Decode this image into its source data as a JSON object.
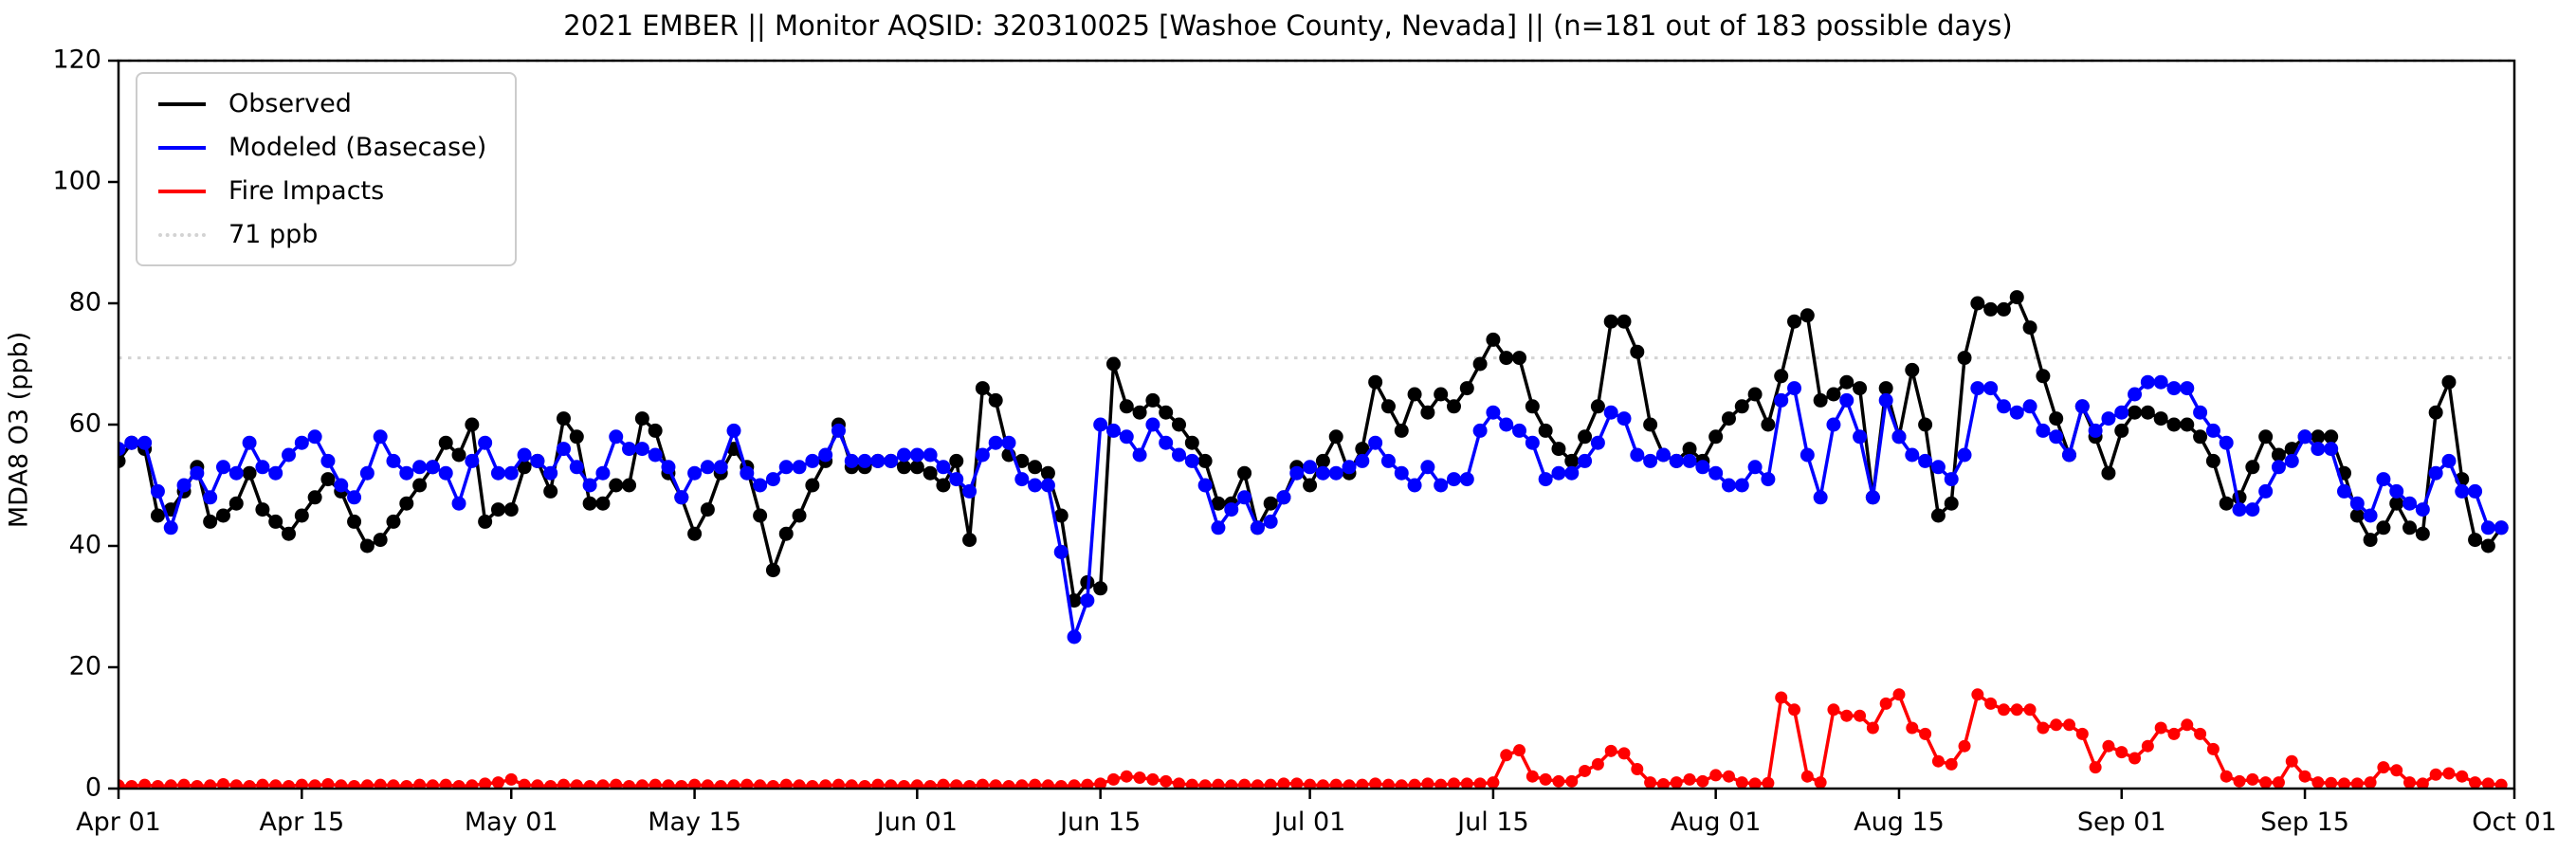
{
  "title": "2021 EMBER || Monitor AQSID: 320310025 [Washoe County, Nevada] || (n=181 out of 183 possible days)",
  "colors": {
    "observed": "#000000",
    "modeled": "#0000ff",
    "fire": "#ff0000",
    "threshold": "#d3d3d3",
    "axis": "#000000",
    "background": "#ffffff"
  },
  "chart_data": {
    "type": "line",
    "title": "2021 EMBER || Monitor AQSID: 320310025 [Washoe County, Nevada] || (n=181 out of 183 possible days)",
    "xlabel": "",
    "ylabel": "MDA8 O3 (ppb)",
    "ylim": [
      0,
      120
    ],
    "y_ticks": [
      0,
      20,
      40,
      60,
      80,
      100,
      120
    ],
    "grid": false,
    "legend_position": "upper left",
    "x_start_date": "2021-04-01",
    "x_end_date": "2021-09-30",
    "n_days": 183,
    "x_tick_labels": [
      "Apr 01",
      "Apr 15",
      "May 01",
      "May 15",
      "Jun 01",
      "Jun 15",
      "Jul 01",
      "Jul 15",
      "Aug 01",
      "Aug 15",
      "Sep 01",
      "Sep 15",
      "Oct 01"
    ],
    "x_tick_positions": [
      0,
      14,
      30,
      44,
      61,
      75,
      91,
      105,
      122,
      136,
      153,
      167,
      183
    ],
    "reference_lines": [
      {
        "label": "71 ppb",
        "value": 71,
        "style": "dotted",
        "color": "#d3d3d3"
      },
      {
        "label": "",
        "value": 120,
        "style": "dotted",
        "color": "#d3d3d3"
      }
    ],
    "legend": [
      {
        "label": "Observed",
        "color": "#000000",
        "line_style": "solid"
      },
      {
        "label": "Modeled (Basecase)",
        "color": "#0000ff",
        "line_style": "solid"
      },
      {
        "label": "Fire Impacts",
        "color": "#ff0000",
        "line_style": "solid"
      },
      {
        "label": "71 ppb",
        "color": "#d3d3d3",
        "line_style": "dotted"
      }
    ],
    "series": [
      {
        "name": "Observed",
        "color": "#000000",
        "marker": "circle",
        "values": [
          54,
          57,
          56,
          45,
          46,
          49,
          53,
          44,
          45,
          47,
          52,
          46,
          44,
          42,
          45,
          48,
          51,
          49,
          44,
          40,
          41,
          44,
          47,
          50,
          53,
          57,
          55,
          60,
          44,
          46,
          46,
          53,
          54,
          49,
          61,
          58,
          47,
          47,
          50,
          50,
          61,
          59,
          52,
          48,
          42,
          46,
          52,
          56,
          53,
          45,
          36,
          42,
          45,
          50,
          54,
          60,
          53,
          53,
          54,
          54,
          53,
          53,
          52,
          50,
          54,
          41,
          66,
          64,
          55,
          54,
          53,
          52,
          45,
          31,
          34,
          33,
          70,
          63,
          62,
          64,
          62,
          60,
          57,
          54,
          47,
          47,
          52,
          43,
          47,
          48,
          53,
          50,
          54,
          58,
          52,
          56,
          67,
          63,
          59,
          65,
          62,
          65,
          63,
          66,
          70,
          74,
          71,
          71,
          63,
          59,
          56,
          54,
          58,
          63,
          77,
          77,
          72,
          60,
          55,
          54,
          56,
          54,
          58,
          61,
          63,
          65,
          60,
          68,
          77,
          78,
          64,
          65,
          67,
          66,
          48,
          66,
          58,
          69,
          60,
          45,
          47,
          71,
          80,
          79,
          79,
          81,
          76,
          68,
          61,
          55,
          63,
          58,
          52,
          59,
          62,
          62,
          61,
          60,
          60,
          58,
          54,
          47,
          48,
          53,
          58,
          55,
          56,
          58,
          58,
          58,
          52,
          45,
          41,
          43,
          47,
          43,
          42,
          62,
          67,
          51,
          41,
          40,
          43
        ]
      },
      {
        "name": "Modeled (Basecase)",
        "color": "#0000ff",
        "marker": "circle",
        "values": [
          56,
          57,
          57,
          49,
          43,
          50,
          52,
          48,
          53,
          52,
          57,
          53,
          52,
          55,
          57,
          58,
          54,
          50,
          48,
          52,
          58,
          54,
          52,
          53,
          53,
          52,
          47,
          54,
          57,
          52,
          52,
          55,
          54,
          52,
          56,
          53,
          50,
          52,
          58,
          56,
          56,
          55,
          53,
          48,
          52,
          53,
          53,
          59,
          52,
          50,
          51,
          53,
          53,
          54,
          55,
          59,
          54,
          54,
          54,
          54,
          55,
          55,
          55,
          53,
          51,
          49,
          55,
          57,
          57,
          51,
          50,
          50,
          39,
          25,
          31,
          60,
          59,
          58,
          55,
          60,
          57,
          55,
          54,
          50,
          43,
          46,
          48,
          43,
          44,
          48,
          52,
          53,
          52,
          52,
          53,
          54,
          57,
          54,
          52,
          50,
          53,
          50,
          51,
          51,
          59,
          62,
          60,
          59,
          57,
          51,
          52,
          52,
          54,
          57,
          62,
          61,
          55,
          54,
          55,
          54,
          54,
          53,
          52,
          50,
          50,
          53,
          51,
          64,
          66,
          55,
          48,
          60,
          64,
          58,
          48,
          64,
          58,
          55,
          54,
          53,
          51,
          55,
          66,
          66,
          63,
          62,
          63,
          59,
          58,
          55,
          63,
          59,
          61,
          62,
          65,
          67,
          67,
          66,
          66,
          62,
          59,
          57,
          46,
          46,
          49,
          53,
          54,
          58,
          56,
          56,
          49,
          47,
          45,
          51,
          49,
          47,
          46,
          52,
          54,
          49,
          49,
          43,
          43
        ]
      },
      {
        "name": "Fire Impacts",
        "color": "#ff0000",
        "marker": "circle",
        "values": [
          0.5,
          0.4,
          0.6,
          0.4,
          0.5,
          0.6,
          0.4,
          0.5,
          0.7,
          0.5,
          0.4,
          0.6,
          0.5,
          0.4,
          0.6,
          0.5,
          0.7,
          0.5,
          0.4,
          0.5,
          0.6,
          0.5,
          0.4,
          0.6,
          0.5,
          0.6,
          0.4,
          0.5,
          0.8,
          1.0,
          1.5,
          0.6,
          0.5,
          0.4,
          0.6,
          0.5,
          0.4,
          0.5,
          0.6,
          0.4,
          0.5,
          0.6,
          0.5,
          0.4,
          0.6,
          0.5,
          0.4,
          0.5,
          0.6,
          0.5,
          0.4,
          0.6,
          0.5,
          0.4,
          0.5,
          0.6,
          0.5,
          0.4,
          0.6,
          0.5,
          0.4,
          0.5,
          0.4,
          0.6,
          0.5,
          0.4,
          0.6,
          0.5,
          0.4,
          0.5,
          0.6,
          0.5,
          0.4,
          0.5,
          0.6,
          0.8,
          1.5,
          2.0,
          1.8,
          1.5,
          1.2,
          0.8,
          0.6,
          0.5,
          0.6,
          0.5,
          0.6,
          0.5,
          0.6,
          0.8,
          0.8,
          0.6,
          0.5,
          0.6,
          0.5,
          0.6,
          0.8,
          0.6,
          0.5,
          0.6,
          0.8,
          0.6,
          0.8,
          0.8,
          0.8,
          1.0,
          5.5,
          6.3,
          2.0,
          1.5,
          1.2,
          1.2,
          2.9,
          4.0,
          6.2,
          5.8,
          3.2,
          1.0,
          0.7,
          1.0,
          1.5,
          1.2,
          2.2,
          2.0,
          1.0,
          0.8,
          0.9,
          15.0,
          13.0,
          2.0,
          1.0,
          13.0,
          12.0,
          12.0,
          10.0,
          14.0,
          15.5,
          10.0,
          9.0,
          4.5,
          4.0,
          7.0,
          15.5,
          14.0,
          13.0,
          13.0,
          13.0,
          10.0,
          10.5,
          10.5,
          9.0,
          3.5,
          7.0,
          6.0,
          5.0,
          7.0,
          10.0,
          9.0,
          10.5,
          9.0,
          6.5,
          2.0,
          1.2,
          1.5,
          1.0,
          1.0,
          4.5,
          2.0,
          1.0,
          0.9,
          0.8,
          0.8,
          1.0,
          3.5,
          3.0,
          1.0,
          0.8,
          2.3,
          2.5,
          2.0,
          1.0,
          0.8,
          0.6
        ]
      }
    ]
  }
}
